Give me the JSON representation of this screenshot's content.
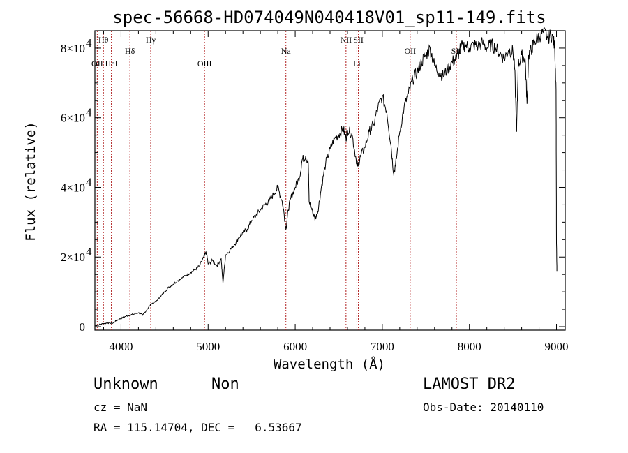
{
  "chart_data": {
    "type": "line",
    "title": "spec-56668-HD074049N040418V01_sp11-149.fits",
    "xlabel": "Wavelength (Å)",
    "ylabel": "Flux (relative)",
    "xlim": [
      3700,
      9100
    ],
    "ylim": [
      -1000,
      85000
    ],
    "x_ticks": [
      {
        "value": 4000,
        "label": "4000"
      },
      {
        "value": 5000,
        "label": "5000"
      },
      {
        "value": 6000,
        "label": "6000"
      },
      {
        "value": 7000,
        "label": "7000"
      },
      {
        "value": 8000,
        "label": "8000"
      },
      {
        "value": 9000,
        "label": "9000"
      }
    ],
    "y_ticks": [
      {
        "value": 0,
        "label": "0",
        "sup": ""
      },
      {
        "value": 20000,
        "label": "2×10",
        "sup": "4"
      },
      {
        "value": 40000,
        "label": "4×10",
        "sup": "4"
      },
      {
        "value": 60000,
        "label": "6×10",
        "sup": "4"
      },
      {
        "value": 80000,
        "label": "8×10",
        "sup": "4"
      }
    ],
    "spectral_lines": [
      {
        "label": "Hθ",
        "x": 3798,
        "row": 0
      },
      {
        "label": "OII",
        "x": 3727,
        "row": 2
      },
      {
        "label": "HeI",
        "x": 3889,
        "row": 2
      },
      {
        "label": "Hδ",
        "x": 4102,
        "row": 1
      },
      {
        "label": "Hγ",
        "x": 4341,
        "row": 0
      },
      {
        "label": "OIII",
        "x": 4959,
        "row": 2
      },
      {
        "label": "Na",
        "x": 5893,
        "row": 1
      },
      {
        "label": "NII",
        "x": 6583,
        "row": 0
      },
      {
        "label": "SII",
        "x": 6725,
        "row": 0
      },
      {
        "label": "Li",
        "x": 6708,
        "row": 2
      },
      {
        "label": "OII",
        "x": 7320,
        "row": 1
      },
      {
        "label": "SII",
        "x": 7850,
        "row": 1
      }
    ],
    "series": [
      {
        "color": "#000000",
        "points": [
          [
            3700,
            300
          ],
          [
            3750,
            600
          ],
          [
            3800,
            900
          ],
          [
            3850,
            1100
          ],
          [
            3900,
            900
          ],
          [
            3950,
            1800
          ],
          [
            4000,
            2400
          ],
          [
            4050,
            2900
          ],
          [
            4100,
            3300
          ],
          [
            4150,
            3600
          ],
          [
            4200,
            4000
          ],
          [
            4250,
            3300
          ],
          [
            4300,
            5000
          ],
          [
            4350,
            6600
          ],
          [
            4400,
            7200
          ],
          [
            4450,
            8600
          ],
          [
            4500,
            10000
          ],
          [
            4550,
            11400
          ],
          [
            4600,
            12200
          ],
          [
            4650,
            13200
          ],
          [
            4700,
            14000
          ],
          [
            4750,
            14800
          ],
          [
            4800,
            15600
          ],
          [
            4850,
            16400
          ],
          [
            4900,
            17400
          ],
          [
            4950,
            20000
          ],
          [
            4980,
            21500
          ],
          [
            5000,
            18000
          ],
          [
            5050,
            19000
          ],
          [
            5100,
            17500
          ],
          [
            5150,
            19500
          ],
          [
            5170,
            12500
          ],
          [
            5200,
            20500
          ],
          [
            5250,
            22000
          ],
          [
            5300,
            23500
          ],
          [
            5350,
            25500
          ],
          [
            5400,
            27000
          ],
          [
            5450,
            28000
          ],
          [
            5500,
            30500
          ],
          [
            5550,
            32000
          ],
          [
            5600,
            33500
          ],
          [
            5650,
            35000
          ],
          [
            5700,
            36000
          ],
          [
            5750,
            38000
          ],
          [
            5800,
            40000
          ],
          [
            5850,
            36000
          ],
          [
            5870,
            33000
          ],
          [
            5893,
            28000
          ],
          [
            5920,
            33500
          ],
          [
            5950,
            37000
          ],
          [
            6000,
            40000
          ],
          [
            6050,
            43000
          ],
          [
            6080,
            48000
          ],
          [
            6120,
            49000
          ],
          [
            6150,
            47000
          ],
          [
            6160,
            36000
          ],
          [
            6200,
            33000
          ],
          [
            6230,
            31000
          ],
          [
            6260,
            33000
          ],
          [
            6300,
            40000
          ],
          [
            6350,
            47000
          ],
          [
            6400,
            51000
          ],
          [
            6450,
            54000
          ],
          [
            6500,
            55000
          ],
          [
            6550,
            57000
          ],
          [
            6583,
            54000
          ],
          [
            6600,
            56500
          ],
          [
            6650,
            55500
          ],
          [
            6700,
            48000
          ],
          [
            6720,
            46000
          ],
          [
            6750,
            49000
          ],
          [
            6800,
            51500
          ],
          [
            6850,
            56000
          ],
          [
            6900,
            58000
          ],
          [
            6950,
            63000
          ],
          [
            7000,
            66000
          ],
          [
            7050,
            62000
          ],
          [
            7100,
            52000
          ],
          [
            7130,
            44000
          ],
          [
            7150,
            46000
          ],
          [
            7200,
            56000
          ],
          [
            7250,
            63000
          ],
          [
            7300,
            67000
          ],
          [
            7350,
            71000
          ],
          [
            7400,
            73000
          ],
          [
            7450,
            76000
          ],
          [
            7500,
            78000
          ],
          [
            7550,
            80000
          ],
          [
            7600,
            75000
          ],
          [
            7650,
            73000
          ],
          [
            7700,
            72000
          ],
          [
            7750,
            74000
          ],
          [
            7800,
            76000
          ],
          [
            7850,
            77000
          ],
          [
            7900,
            80000
          ],
          [
            7950,
            81000
          ],
          [
            8000,
            80000
          ],
          [
            8050,
            81000
          ],
          [
            8100,
            80500
          ],
          [
            8150,
            81500
          ],
          [
            8200,
            80000
          ],
          [
            8250,
            81000
          ],
          [
            8300,
            80000
          ],
          [
            8350,
            78500
          ],
          [
            8400,
            77000
          ],
          [
            8450,
            79500
          ],
          [
            8500,
            79000
          ],
          [
            8520,
            74000
          ],
          [
            8542,
            56000
          ],
          [
            8560,
            75000
          ],
          [
            8600,
            78000
          ],
          [
            8640,
            77000
          ],
          [
            8662,
            64000
          ],
          [
            8680,
            78000
          ],
          [
            8720,
            80000
          ],
          [
            8750,
            82000
          ],
          [
            8800,
            83500
          ],
          [
            8850,
            84500
          ],
          [
            8900,
            83000
          ],
          [
            8950,
            84000
          ],
          [
            8980,
            80000
          ],
          [
            8995,
            68000
          ],
          [
            9000,
            24000
          ],
          [
            9005,
            16000
          ]
        ]
      }
    ]
  },
  "footer": {
    "object_class": "Unknown",
    "subclass": "Non",
    "cz": "cz = NaN",
    "radec": "RA = 115.14704, DEC =   6.53667",
    "survey": "LAMOST DR2",
    "obs_date": "Obs-Date: 20140110"
  }
}
